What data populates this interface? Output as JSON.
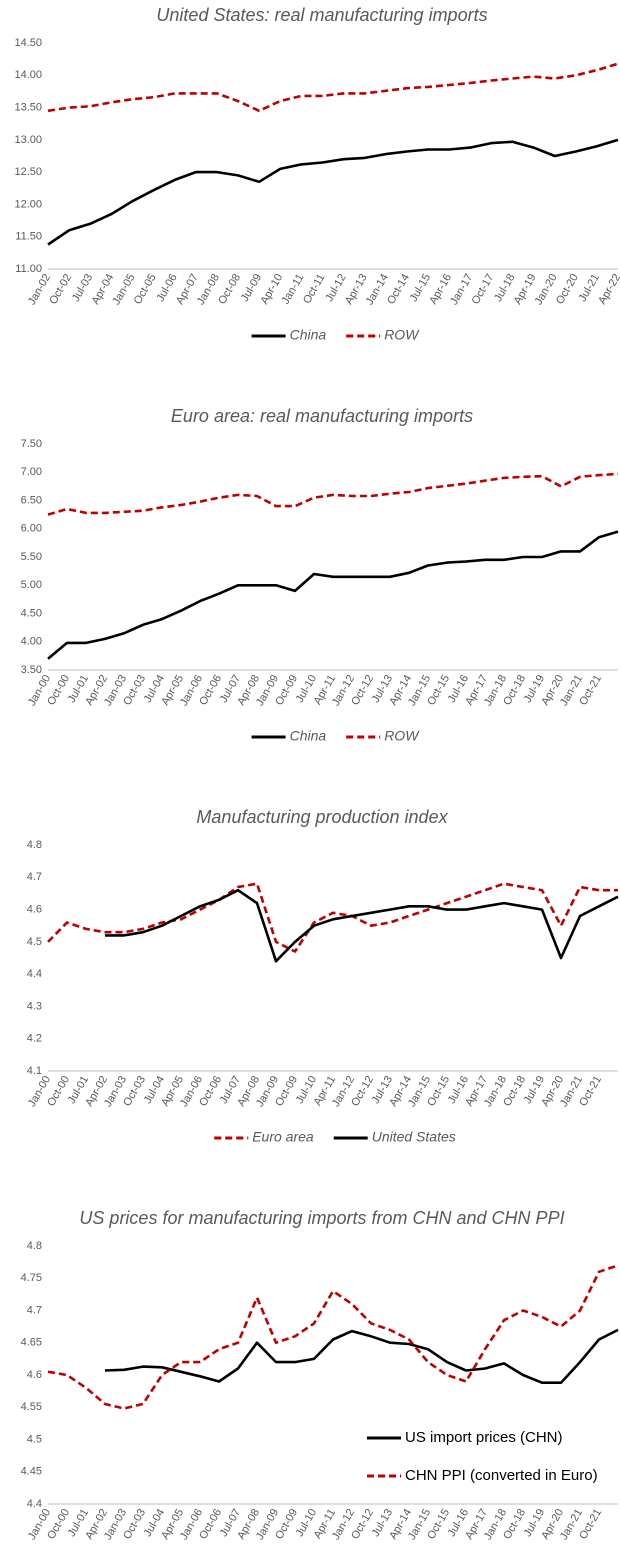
{
  "chart_data": [
    {
      "type": "line",
      "title": "United States: real manufacturing imports",
      "categories": [
        "Jan-02",
        "Oct-02",
        "Jul-03",
        "Apr-04",
        "Jan-05",
        "Oct-05",
        "Jul-06",
        "Apr-07",
        "Jan-08",
        "Oct-08",
        "Jul-09",
        "Apr-10",
        "Jan-11",
        "Oct-11",
        "Jul-12",
        "Apr-13",
        "Jan-14",
        "Oct-14",
        "Jul-15",
        "Apr-16",
        "Jan-17",
        "Oct-17",
        "Jul-18",
        "Apr-19",
        "Jan-20",
        "Oct-20",
        "Jul-21",
        "Apr-22"
      ],
      "series": [
        {
          "name": "China",
          "color": "#000000",
          "dashed": false,
          "values": [
            11.38,
            11.6,
            11.7,
            11.85,
            12.05,
            12.22,
            12.38,
            12.5,
            12.5,
            12.45,
            12.35,
            12.55,
            12.62,
            12.65,
            12.7,
            12.72,
            12.78,
            12.82,
            12.85,
            12.85,
            12.88,
            12.95,
            12.97,
            12.88,
            12.75,
            12.82,
            12.9,
            13.0
          ]
        },
        {
          "name": "ROW",
          "color": "#c00000",
          "dashed": true,
          "values": [
            13.45,
            13.5,
            13.52,
            13.58,
            13.63,
            13.66,
            13.72,
            13.72,
            13.72,
            13.6,
            13.45,
            13.6,
            13.68,
            13.68,
            13.72,
            13.72,
            13.76,
            13.8,
            13.82,
            13.85,
            13.88,
            13.92,
            13.95,
            13.98,
            13.95,
            14.0,
            14.08,
            14.18
          ]
        }
      ],
      "ylim": [
        11,
        14.5
      ],
      "yticks": [
        {
          "value": 11,
          "label": "11.00"
        },
        {
          "value": 11.5,
          "label": "11.50"
        },
        {
          "value": 12,
          "label": "12.00"
        },
        {
          "value": 12.5,
          "label": "12.50"
        },
        {
          "value": 13,
          "label": "13.00"
        },
        {
          "value": 13.5,
          "label": "13.50"
        },
        {
          "value": 14,
          "label": "14.00"
        },
        {
          "value": 14.5,
          "label": "14.50"
        }
      ],
      "legend_position": "bottom"
    },
    {
      "type": "line",
      "title": "Euro area: real manufacturing imports",
      "categories": [
        "Jan-00",
        "Oct-00",
        "Jul-01",
        "Apr-02",
        "Jan-03",
        "Oct-03",
        "Jul-04",
        "Apr-05",
        "Jan-06",
        "Oct-06",
        "Jul-07",
        "Apr-08",
        "Jan-09",
        "Oct-09",
        "Jul-10",
        "Apr-11",
        "Jan-12",
        "Oct-12",
        "Jul-13",
        "Apr-14",
        "Jan-15",
        "Oct-15",
        "Jul-16",
        "Apr-17",
        "Jan-18",
        "Oct-18",
        "Jul-19",
        "Apr-20",
        "Jan-21",
        "Oct-21",
        null
      ],
      "series": [
        {
          "name": "China",
          "color": "#000000",
          "dashed": false,
          "values": [
            3.7,
            3.98,
            3.98,
            4.05,
            4.15,
            4.3,
            4.4,
            4.55,
            4.72,
            4.85,
            5.0,
            5.0,
            5.0,
            4.9,
            5.2,
            5.15,
            5.15,
            5.15,
            5.15,
            5.22,
            5.35,
            5.4,
            5.42,
            5.45,
            5.45,
            5.5,
            5.5,
            5.6,
            5.6,
            5.85,
            5.95
          ]
        },
        {
          "name": "ROW",
          "color": "#c00000",
          "dashed": true,
          "values": [
            6.25,
            6.35,
            6.28,
            6.28,
            6.3,
            6.32,
            6.38,
            6.42,
            6.48,
            6.55,
            6.6,
            6.58,
            6.4,
            6.4,
            6.55,
            6.6,
            6.58,
            6.58,
            6.62,
            6.65,
            6.72,
            6.76,
            6.8,
            6.85,
            6.9,
            6.92,
            6.93,
            6.75,
            6.92,
            6.95,
            6.97
          ]
        }
      ],
      "ylim": [
        3.5,
        7.5
      ],
      "yticks": [
        {
          "value": 3.5,
          "label": "3.50"
        },
        {
          "value": 4,
          "label": "4.00"
        },
        {
          "value": 4.5,
          "label": "4.50"
        },
        {
          "value": 5,
          "label": "5.00"
        },
        {
          "value": 5.5,
          "label": "5.50"
        },
        {
          "value": 6,
          "label": "6.00"
        },
        {
          "value": 6.5,
          "label": "6.50"
        },
        {
          "value": 7,
          "label": "7.00"
        },
        {
          "value": 7.5,
          "label": "7.50"
        }
      ],
      "legend_position": "bottom"
    },
    {
      "type": "line",
      "title": "Manufacturing production index",
      "categories": [
        "Jan-00",
        "Oct-00",
        "Jul-01",
        "Apr-02",
        "Jan-03",
        "Oct-03",
        "Jul-04",
        "Apr-05",
        "Jan-06",
        "Oct-06",
        "Jul-07",
        "Apr-08",
        "Jan-09",
        "Oct-09",
        "Jul-10",
        "Apr-11",
        "Jan-12",
        "Oct-12",
        "Jul-13",
        "Apr-14",
        "Jan-15",
        "Oct-15",
        "Jul-16",
        "Apr-17",
        "Jan-18",
        "Oct-18",
        "Jul-19",
        "Apr-20",
        "Jan-21",
        "Oct-21",
        null
      ],
      "series": [
        {
          "name": "Euro area",
          "color": "#c00000",
          "dashed": true,
          "values": [
            4.5,
            4.56,
            4.54,
            4.53,
            4.53,
            4.54,
            4.56,
            4.57,
            4.6,
            4.63,
            4.67,
            4.68,
            4.5,
            4.47,
            4.56,
            4.59,
            4.58,
            4.55,
            4.56,
            4.58,
            4.6,
            4.62,
            4.64,
            4.66,
            4.68,
            4.67,
            4.66,
            4.55,
            4.67,
            4.66,
            4.66
          ]
        },
        {
          "name": "United States",
          "color": "#000000",
          "dashed": false,
          "values": [
            null,
            null,
            null,
            4.52,
            4.52,
            4.53,
            4.55,
            4.58,
            4.61,
            4.63,
            4.66,
            4.62,
            4.44,
            4.5,
            4.55,
            4.57,
            4.58,
            4.59,
            4.6,
            4.61,
            4.61,
            4.6,
            4.6,
            4.61,
            4.62,
            4.61,
            4.6,
            4.45,
            4.58,
            4.61,
            4.64
          ]
        }
      ],
      "ylim": [
        4.1,
        4.8
      ],
      "yticks": [
        4.1,
        4.2,
        4.3,
        4.4,
        4.5,
        4.6,
        4.7,
        4.8
      ],
      "legend_position": "bottom"
    },
    {
      "type": "line",
      "title": "US prices for manufacturing imports from CHN and CHN PPI",
      "categories": [
        "Jan-00",
        "Oct-00",
        "Jul-01",
        "Apr-02",
        "Jan-03",
        "Oct-03",
        "Jul-04",
        "Apr-05",
        "Jan-06",
        "Oct-06",
        "Jul-07",
        "Apr-08",
        "Jan-09",
        "Oct-09",
        "Jul-10",
        "Apr-11",
        "Jan-12",
        "Oct-12",
        "Jul-13",
        "Apr-14",
        "Jan-15",
        "Oct-15",
        "Jul-16",
        "Apr-17",
        "Jan-18",
        "Oct-18",
        "Jul-19",
        "Apr-20",
        "Jan-21",
        "Oct-21",
        null
      ],
      "series": [
        {
          "name": "US import prices (CHN)",
          "color": "#000000",
          "dashed": false,
          "values": [
            null,
            null,
            null,
            4.607,
            4.608,
            4.613,
            4.612,
            4.605,
            4.598,
            4.59,
            4.61,
            4.65,
            4.62,
            4.62,
            4.625,
            4.655,
            4.668,
            4.66,
            4.65,
            4.648,
            4.64,
            4.62,
            4.607,
            4.61,
            4.618,
            4.6,
            4.588,
            4.588,
            4.62,
            4.655,
            4.67
          ]
        },
        {
          "name": "CHN PPI (converted in Euro)",
          "color": "#c00000",
          "dashed": true,
          "values": [
            4.605,
            4.6,
            4.58,
            4.555,
            4.548,
            4.555,
            4.6,
            4.62,
            4.62,
            4.64,
            4.65,
            4.72,
            4.65,
            4.66,
            4.68,
            4.73,
            4.71,
            4.68,
            4.67,
            4.655,
            4.62,
            4.6,
            4.59,
            4.64,
            4.685,
            4.7,
            4.69,
            4.675,
            4.7,
            4.76,
            4.77
          ]
        }
      ],
      "ylim": [
        4.4,
        4.8
      ],
      "yticks": [
        4.4,
        4.45,
        4.5,
        4.55,
        4.6,
        4.65,
        4.7,
        4.75,
        4.8
      ],
      "legend_position": "lower right"
    }
  ]
}
